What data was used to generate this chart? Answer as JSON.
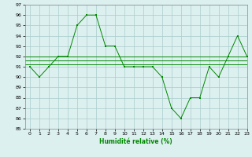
{
  "xlabel": "Humidité relative (%)",
  "background_color": "#ddf0f0",
  "grid_color": "#aacccc",
  "line_color": "#008800",
  "ylim": [
    85,
    97
  ],
  "xlim": [
    -0.5,
    23
  ],
  "yticks": [
    85,
    86,
    87,
    88,
    89,
    90,
    91,
    92,
    93,
    94,
    95,
    96,
    97
  ],
  "xticks": [
    0,
    1,
    2,
    3,
    4,
    5,
    6,
    7,
    8,
    9,
    10,
    11,
    12,
    13,
    14,
    15,
    16,
    17,
    18,
    19,
    20,
    21,
    22,
    23
  ],
  "main_series": [
    91,
    90,
    91,
    92,
    92,
    95,
    96,
    96,
    93,
    93,
    91,
    91,
    91,
    91,
    90,
    87,
    86,
    88,
    88,
    91,
    90,
    92,
    94,
    92
  ],
  "flat_lines": [
    92.0,
    91.2,
    91.6
  ]
}
